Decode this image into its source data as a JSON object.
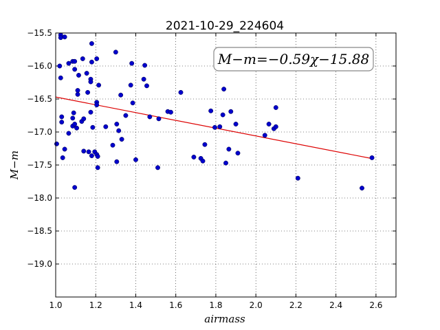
{
  "chart_data": {
    "type": "scatter",
    "title": "2021-10-29_224604",
    "xlabel": "airmass",
    "ylabel": "M−m",
    "xlim": [
      1.0,
      2.7
    ],
    "ylim": [
      -19.5,
      -15.5
    ],
    "y_inverted": true,
    "grid": true,
    "x_ticks": [
      1.0,
      1.2,
      1.4,
      1.6,
      1.8,
      2.0,
      2.2,
      2.4,
      2.6
    ],
    "x_tick_labels": [
      "1.0",
      "1.2",
      "1.4",
      "1.6",
      "1.8",
      "2.0",
      "2.2",
      "2.4",
      "2.6"
    ],
    "y_ticks": [
      -15.5,
      -16.0,
      -16.5,
      -17.0,
      -17.5,
      -18.0,
      -18.5,
      -19.0
    ],
    "y_tick_labels": [
      "−15.5",
      "−16.0",
      "−16.5",
      "−17.0",
      "−17.5",
      "−18.0",
      "−18.5",
      "−19.0"
    ],
    "annotation": "M−m=−0.59χ−15.88",
    "fit_line": {
      "slope": -0.59,
      "intercept": -15.88,
      "x_range": [
        1.0,
        2.58
      ],
      "color": "#dd0000"
    },
    "marker_color": "#0000cc",
    "points": [
      [
        1.025,
        -15.53
      ],
      [
        1.025,
        -15.57
      ],
      [
        1.045,
        -15.56
      ],
      [
        1.065,
        -15.96
      ],
      [
        1.085,
        -15.93
      ],
      [
        1.095,
        -15.93
      ],
      [
        1.02,
        -16.0
      ],
      [
        1.025,
        -16.18
      ],
      [
        1.095,
        -16.05
      ],
      [
        1.11,
        -16.37
      ],
      [
        1.11,
        -16.43
      ],
      [
        1.115,
        -16.14
      ],
      [
        1.135,
        -15.89
      ],
      [
        1.155,
        -16.11
      ],
      [
        1.175,
        -16.2
      ],
      [
        1.175,
        -16.24
      ],
      [
        1.18,
        -15.66
      ],
      [
        1.18,
        -15.94
      ],
      [
        1.205,
        -15.89
      ],
      [
        1.215,
        -16.29
      ],
      [
        1.16,
        -16.4
      ],
      [
        1.205,
        -16.55
      ],
      [
        1.205,
        -16.59
      ],
      [
        1.3,
        -15.79
      ],
      [
        1.325,
        -16.44
      ],
      [
        1.375,
        -16.29
      ],
      [
        1.38,
        -15.96
      ],
      [
        1.385,
        -16.56
      ],
      [
        1.44,
        -16.2
      ],
      [
        1.445,
        -15.99
      ],
      [
        1.455,
        -16.3
      ],
      [
        1.03,
        -16.77
      ],
      [
        1.03,
        -16.85
      ],
      [
        1.09,
        -16.71
      ],
      [
        1.085,
        -16.79
      ],
      [
        1.085,
        -16.91
      ],
      [
        1.095,
        -16.88
      ],
      [
        1.105,
        -16.94
      ],
      [
        1.13,
        -16.84
      ],
      [
        1.14,
        -16.8
      ],
      [
        1.175,
        -16.7
      ],
      [
        1.185,
        -16.93
      ],
      [
        1.065,
        -17.02
      ],
      [
        1.045,
        -17.26
      ],
      [
        1.035,
        -17.39
      ],
      [
        1.005,
        -17.18
      ],
      [
        1.14,
        -17.29
      ],
      [
        1.165,
        -17.3
      ],
      [
        1.18,
        -17.36
      ],
      [
        1.195,
        -17.3
      ],
      [
        1.205,
        -17.34
      ],
      [
        1.21,
        -17.37
      ],
      [
        1.21,
        -17.54
      ],
      [
        1.095,
        -17.84
      ],
      [
        1.25,
        -16.92
      ],
      [
        1.285,
        -17.2
      ],
      [
        1.305,
        -16.88
      ],
      [
        1.315,
        -16.98
      ],
      [
        1.33,
        -17.11
      ],
      [
        1.35,
        -16.75
      ],
      [
        1.305,
        -17.45
      ],
      [
        1.4,
        -17.42
      ],
      [
        1.47,
        -16.77
      ],
      [
        1.515,
        -16.8
      ],
      [
        1.56,
        -16.69
      ],
      [
        1.575,
        -16.7
      ],
      [
        1.625,
        -16.4
      ],
      [
        1.51,
        -17.54
      ],
      [
        1.69,
        -17.38
      ],
      [
        1.725,
        -17.4
      ],
      [
        1.735,
        -17.44
      ],
      [
        1.745,
        -17.19
      ],
      [
        1.775,
        -16.68
      ],
      [
        1.795,
        -16.93
      ],
      [
        1.82,
        -16.92
      ],
      [
        1.835,
        -16.74
      ],
      [
        1.84,
        -16.35
      ],
      [
        1.85,
        -17.47
      ],
      [
        1.865,
        -17.26
      ],
      [
        1.875,
        -16.69
      ],
      [
        1.9,
        -16.88
      ],
      [
        1.91,
        -17.32
      ],
      [
        2.045,
        -17.05
      ],
      [
        2.065,
        -16.88
      ],
      [
        2.09,
        -16.95
      ],
      [
        2.1,
        -16.92
      ],
      [
        2.1,
        -16.63
      ],
      [
        2.21,
        -17.7
      ],
      [
        2.53,
        -17.85
      ],
      [
        2.58,
        -17.39
      ]
    ]
  }
}
